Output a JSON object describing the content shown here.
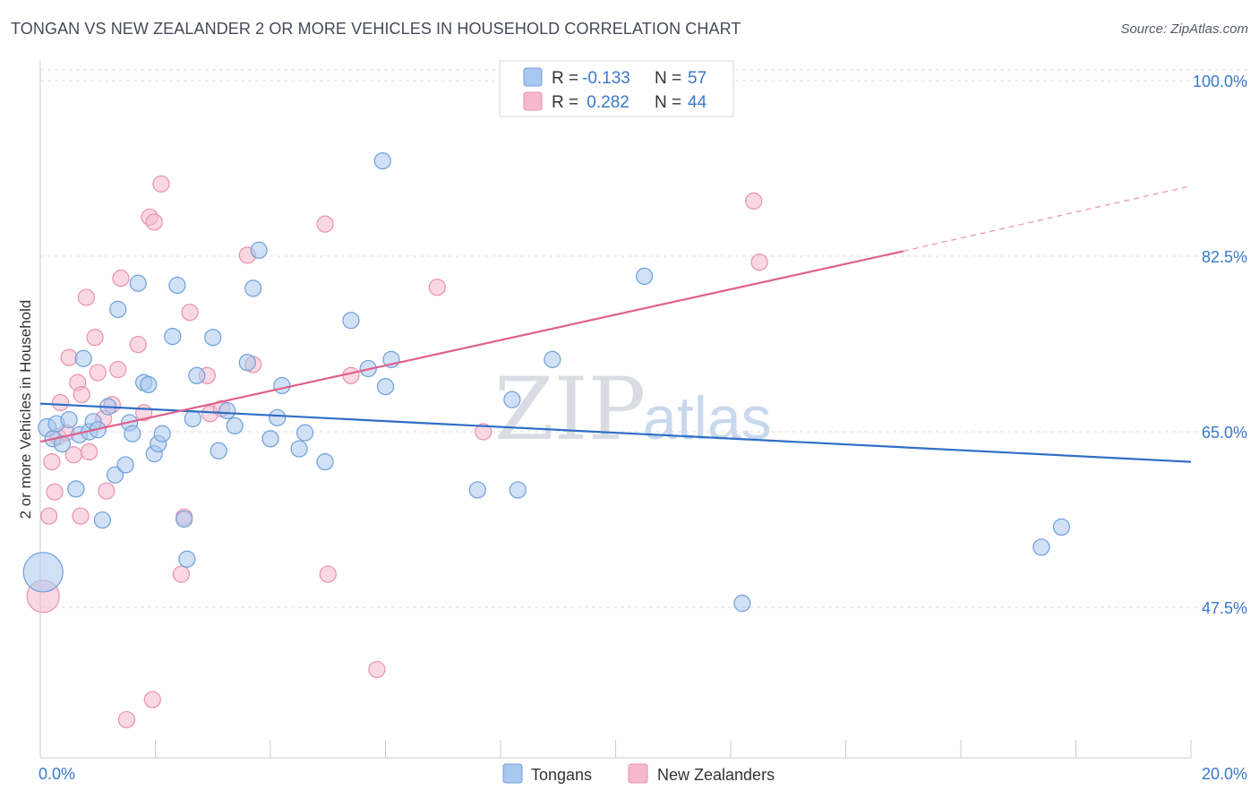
{
  "title": "TONGAN VS NEW ZEALANDER 2 OR MORE VEHICLES IN HOUSEHOLD CORRELATION CHART",
  "source": "Source: ZipAtlas.com",
  "watermark": {
    "zip": "ZIP",
    "atlas": "atlas"
  },
  "legend": {
    "series": [
      {
        "r_label": "R =",
        "r_value": "-0.133",
        "n_label": "N =",
        "n_value": "57"
      },
      {
        "r_label": "R =",
        "r_value": " 0.282",
        "n_label": "N =",
        "n_value": "44"
      }
    ]
  },
  "bottom_legend": [
    "Tongans",
    "New Zealanders"
  ],
  "colors": {
    "tongans_fill": "#a9c8ef",
    "tongans_stroke": "#6f9fd8",
    "tongans_line": "#2f6fc6",
    "nz_fill": "#f6b8cc",
    "nz_stroke": "#e891ad",
    "nz_line": "#e0608c"
  },
  "chart_data": {
    "type": "scatter",
    "title": "TONGAN VS NEW ZEALANDER 2 OR MORE VEHICLES IN HOUSEHOLD CORRELATION CHART",
    "xlabel": "",
    "ylabel": "2 or more Vehicles in Household",
    "xlim": [
      0,
      20
    ],
    "ylim": [
      32.5,
      102.5
    ],
    "x_tick_labels": [
      "0.0%",
      "20.0%"
    ],
    "y_ticks": [
      47.5,
      65.0,
      82.5,
      100.0
    ],
    "y_tick_labels": [
      "47.5%",
      "65.0%",
      "82.5%",
      "100.0%"
    ],
    "grid": true,
    "series": [
      {
        "name": "Tongans",
        "r": -0.133,
        "n": 57,
        "trend": {
          "x": [
            0,
            20
          ],
          "y": [
            67.8,
            62.0
          ]
        },
        "points": [
          {
            "x": 0.05,
            "y": 51.0,
            "s": 22
          },
          {
            "x": 0.12,
            "y": 65.4,
            "s": 10
          },
          {
            "x": 0.22,
            "y": 64.3,
            "s": 9
          },
          {
            "x": 0.28,
            "y": 65.8,
            "s": 9
          },
          {
            "x": 0.38,
            "y": 63.8,
            "s": 9
          },
          {
            "x": 0.5,
            "y": 66.2,
            "s": 9
          },
          {
            "x": 0.62,
            "y": 59.3,
            "s": 9
          },
          {
            "x": 0.68,
            "y": 64.7,
            "s": 9
          },
          {
            "x": 0.75,
            "y": 72.3,
            "s": 9
          },
          {
            "x": 0.85,
            "y": 65.0,
            "s": 9
          },
          {
            "x": 0.92,
            "y": 66.0,
            "s": 9
          },
          {
            "x": 1.0,
            "y": 65.2,
            "s": 9
          },
          {
            "x": 1.08,
            "y": 56.2,
            "s": 9
          },
          {
            "x": 1.18,
            "y": 67.5,
            "s": 9
          },
          {
            "x": 1.3,
            "y": 60.7,
            "s": 9
          },
          {
            "x": 1.35,
            "y": 77.2,
            "s": 9
          },
          {
            "x": 1.48,
            "y": 61.7,
            "s": 9
          },
          {
            "x": 1.55,
            "y": 65.9,
            "s": 9
          },
          {
            "x": 1.6,
            "y": 64.8,
            "s": 9
          },
          {
            "x": 1.7,
            "y": 79.8,
            "s": 9
          },
          {
            "x": 1.8,
            "y": 69.9,
            "s": 9
          },
          {
            "x": 1.88,
            "y": 69.7,
            "s": 9
          },
          {
            "x": 1.98,
            "y": 62.8,
            "s": 9
          },
          {
            "x": 2.05,
            "y": 63.8,
            "s": 9
          },
          {
            "x": 2.12,
            "y": 64.8,
            "s": 9
          },
          {
            "x": 2.3,
            "y": 74.5,
            "s": 9
          },
          {
            "x": 2.38,
            "y": 79.6,
            "s": 9
          },
          {
            "x": 2.5,
            "y": 56.3,
            "s": 9
          },
          {
            "x": 2.55,
            "y": 52.3,
            "s": 9
          },
          {
            "x": 2.65,
            "y": 66.3,
            "s": 9
          },
          {
            "x": 2.72,
            "y": 70.6,
            "s": 9
          },
          {
            "x": 3.0,
            "y": 74.4,
            "s": 9
          },
          {
            "x": 3.1,
            "y": 63.1,
            "s": 9
          },
          {
            "x": 3.25,
            "y": 67.1,
            "s": 9
          },
          {
            "x": 3.38,
            "y": 65.6,
            "s": 9
          },
          {
            "x": 3.6,
            "y": 71.9,
            "s": 9
          },
          {
            "x": 3.7,
            "y": 79.3,
            "s": 9
          },
          {
            "x": 3.8,
            "y": 83.1,
            "s": 9
          },
          {
            "x": 4.0,
            "y": 64.3,
            "s": 9
          },
          {
            "x": 4.12,
            "y": 66.4,
            "s": 9
          },
          {
            "x": 4.2,
            "y": 69.6,
            "s": 9
          },
          {
            "x": 4.5,
            "y": 63.3,
            "s": 9
          },
          {
            "x": 4.6,
            "y": 64.9,
            "s": 9
          },
          {
            "x": 4.95,
            "y": 62.0,
            "s": 9
          },
          {
            "x": 5.4,
            "y": 76.1,
            "s": 9
          },
          {
            "x": 5.7,
            "y": 71.3,
            "s": 9
          },
          {
            "x": 5.95,
            "y": 92.0,
            "s": 9
          },
          {
            "x": 6.0,
            "y": 69.5,
            "s": 9
          },
          {
            "x": 6.1,
            "y": 72.2,
            "s": 9
          },
          {
            "x": 7.6,
            "y": 59.2,
            "s": 9
          },
          {
            "x": 8.2,
            "y": 68.2,
            "s": 9
          },
          {
            "x": 8.3,
            "y": 59.2,
            "s": 9
          },
          {
            "x": 8.9,
            "y": 72.2,
            "s": 9
          },
          {
            "x": 10.5,
            "y": 80.5,
            "s": 9
          },
          {
            "x": 12.2,
            "y": 47.9,
            "s": 9
          },
          {
            "x": 17.4,
            "y": 53.5,
            "s": 9
          },
          {
            "x": 17.75,
            "y": 55.5,
            "s": 9
          }
        ]
      },
      {
        "name": "New Zealanders",
        "r": 0.282,
        "n": 44,
        "trend": {
          "x": [
            0,
            15
          ],
          "y": [
            64.0,
            83.0
          ]
        },
        "trend_extension": {
          "x": [
            15,
            20
          ],
          "y": [
            83.0,
            89.5
          ]
        },
        "points": [
          {
            "x": 0.05,
            "y": 48.6,
            "s": 18
          },
          {
            "x": 0.15,
            "y": 56.6,
            "s": 9
          },
          {
            "x": 0.2,
            "y": 62.0,
            "s": 9
          },
          {
            "x": 0.25,
            "y": 59.0,
            "s": 9
          },
          {
            "x": 0.3,
            "y": 64.5,
            "s": 9
          },
          {
            "x": 0.35,
            "y": 67.9,
            "s": 9
          },
          {
            "x": 0.45,
            "y": 64.9,
            "s": 9
          },
          {
            "x": 0.5,
            "y": 72.4,
            "s": 9
          },
          {
            "x": 0.58,
            "y": 62.7,
            "s": 9
          },
          {
            "x": 0.65,
            "y": 69.9,
            "s": 9
          },
          {
            "x": 0.7,
            "y": 56.6,
            "s": 9
          },
          {
            "x": 0.72,
            "y": 68.7,
            "s": 9
          },
          {
            "x": 0.8,
            "y": 78.4,
            "s": 9
          },
          {
            "x": 0.85,
            "y": 63.0,
            "s": 9
          },
          {
            "x": 0.95,
            "y": 74.4,
            "s": 9
          },
          {
            "x": 1.0,
            "y": 70.9,
            "s": 9
          },
          {
            "x": 1.1,
            "y": 66.3,
            "s": 9
          },
          {
            "x": 1.15,
            "y": 59.1,
            "s": 9
          },
          {
            "x": 1.25,
            "y": 67.7,
            "s": 9
          },
          {
            "x": 1.35,
            "y": 71.2,
            "s": 9
          },
          {
            "x": 1.4,
            "y": 80.3,
            "s": 9
          },
          {
            "x": 1.5,
            "y": 36.3,
            "s": 9
          },
          {
            "x": 1.7,
            "y": 73.7,
            "s": 9
          },
          {
            "x": 1.8,
            "y": 66.9,
            "s": 9
          },
          {
            "x": 1.9,
            "y": 86.4,
            "s": 9
          },
          {
            "x": 1.95,
            "y": 38.3,
            "s": 9
          },
          {
            "x": 1.98,
            "y": 85.9,
            "s": 9
          },
          {
            "x": 2.1,
            "y": 89.7,
            "s": 9
          },
          {
            "x": 2.5,
            "y": 56.5,
            "s": 9
          },
          {
            "x": 2.45,
            "y": 50.8,
            "s": 9
          },
          {
            "x": 2.6,
            "y": 76.9,
            "s": 9
          },
          {
            "x": 2.9,
            "y": 70.6,
            "s": 9
          },
          {
            "x": 2.95,
            "y": 66.8,
            "s": 9
          },
          {
            "x": 3.15,
            "y": 67.3,
            "s": 9
          },
          {
            "x": 3.6,
            "y": 82.6,
            "s": 9
          },
          {
            "x": 3.7,
            "y": 71.7,
            "s": 9
          },
          {
            "x": 5.0,
            "y": 50.8,
            "s": 9
          },
          {
            "x": 4.95,
            "y": 85.7,
            "s": 9
          },
          {
            "x": 5.4,
            "y": 70.6,
            "s": 9
          },
          {
            "x": 5.85,
            "y": 41.3,
            "s": 9
          },
          {
            "x": 6.9,
            "y": 79.4,
            "s": 9
          },
          {
            "x": 7.7,
            "y": 65.0,
            "s": 9
          },
          {
            "x": 12.4,
            "y": 88.0,
            "s": 9
          },
          {
            "x": 12.5,
            "y": 81.9,
            "s": 9
          }
        ]
      }
    ]
  }
}
